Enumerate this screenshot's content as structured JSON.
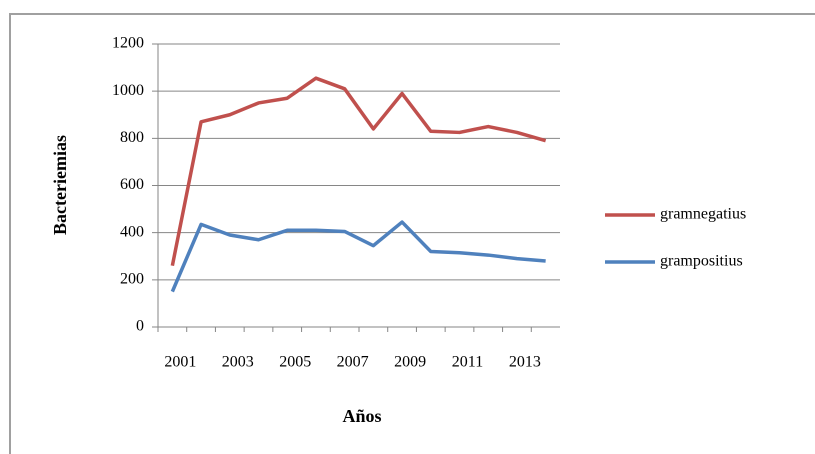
{
  "chart_data": {
    "type": "line",
    "categories": [
      "2001",
      null,
      "2003",
      null,
      "2005",
      null,
      "2007",
      null,
      "2009",
      null,
      "2011",
      null,
      "2013",
      null
    ],
    "series": [
      {
        "name": "gramnegatius",
        "color": "#c0504d",
        "values": [
          260,
          870,
          900,
          950,
          970,
          1055,
          1010,
          840,
          990,
          830,
          825,
          850,
          825,
          790
        ]
      },
      {
        "name": "grampositius",
        "color": "#4f81bd",
        "values": [
          150,
          435,
          390,
          370,
          410,
          410,
          405,
          345,
          445,
          320,
          315,
          305,
          290,
          280
        ]
      }
    ],
    "ylim": [
      0,
      1200
    ],
    "yticks": [
      0,
      200,
      400,
      600,
      800,
      1000,
      1200
    ],
    "grid": true,
    "legend": "right",
    "ylabel": "Bacteriemias",
    "xlabel": "Años"
  }
}
